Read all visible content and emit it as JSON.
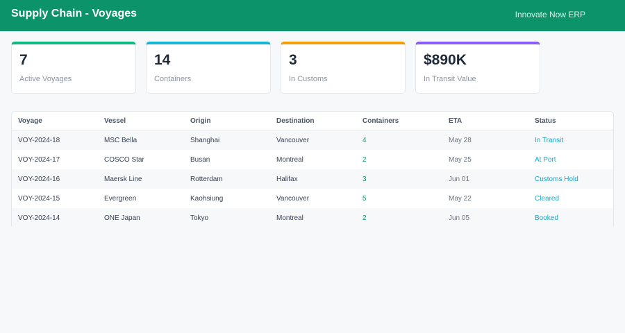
{
  "header": {
    "title": "Supply Chain - Voyages",
    "brand": "Innovate Now ERP"
  },
  "colors": {
    "header_bg": "#0d936a",
    "accent_status": "#18a7c7"
  },
  "stats": [
    {
      "value": "7",
      "label": "Active Voyages",
      "accent": "#10b981"
    },
    {
      "value": "14",
      "label": "Containers",
      "accent": "#15b6d6"
    },
    {
      "value": "3",
      "label": "In Customs",
      "accent": "#f59e0b"
    },
    {
      "value": "$890K",
      "label": "In Transit Value",
      "accent": "#8b5cf6"
    }
  ],
  "table": {
    "columns": [
      "Voyage",
      "Vessel",
      "Origin",
      "Destination",
      "Containers",
      "ETA",
      "Status"
    ],
    "rows": [
      {
        "voyage": "VOY-2024-18",
        "vessel": "MSC Bella",
        "origin": "Shanghai",
        "destination": "Vancouver",
        "containers": "4",
        "eta": "May 28",
        "status": "In Transit"
      },
      {
        "voyage": "VOY-2024-17",
        "vessel": "COSCO Star",
        "origin": "Busan",
        "destination": "Montreal",
        "containers": "2",
        "eta": "May 25",
        "status": "At Port"
      },
      {
        "voyage": "VOY-2024-16",
        "vessel": "Maersk Line",
        "origin": "Rotterdam",
        "destination": "Halifax",
        "containers": "3",
        "eta": "Jun 01",
        "status": "Customs Hold"
      },
      {
        "voyage": "VOY-2024-15",
        "vessel": "Evergreen",
        "origin": "Kaohsiung",
        "destination": "Vancouver",
        "containers": "5",
        "eta": "May 22",
        "status": "Cleared"
      },
      {
        "voyage": "VOY-2024-14",
        "vessel": "ONE Japan",
        "origin": "Tokyo",
        "destination": "Montreal",
        "containers": "2",
        "eta": "Jun 05",
        "status": "Booked"
      }
    ]
  }
}
